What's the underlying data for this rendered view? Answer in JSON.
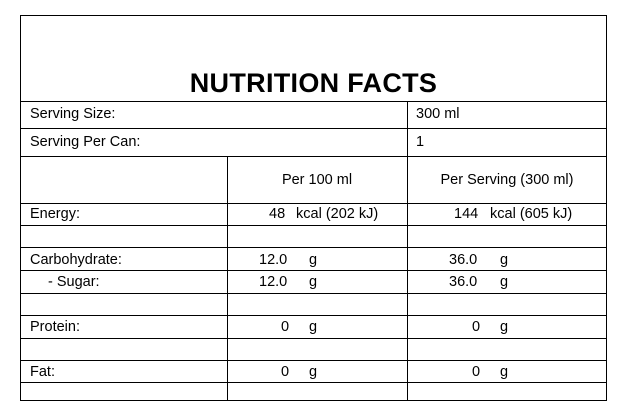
{
  "title": "NUTRITION FACTS",
  "serving_size": {
    "label": "Serving Size:",
    "value": "300 ml"
  },
  "serving_per_can": {
    "label": "Serving Per Can:",
    "value": "1"
  },
  "columns": {
    "per100": "Per 100 ml",
    "per_serving": "Per Serving (300 ml)"
  },
  "rows": {
    "energy": {
      "label": "Energy:",
      "per100_num": "48",
      "per100_unit": "kcal (202 kJ)",
      "serv_num": "144",
      "serv_unit": "kcal (605 kJ)"
    },
    "carbohydrate": {
      "label": "Carbohydrate:",
      "per100_num": "12.0",
      "per100_unit": "g",
      "serv_num": "36.0",
      "serv_unit": "g"
    },
    "sugar": {
      "label": "- Sugar:",
      "per100_num": "12.0",
      "per100_unit": "g",
      "serv_num": "36.0",
      "serv_unit": "g"
    },
    "protein": {
      "label": "Protein:",
      "per100_num": "0",
      "per100_unit": "g",
      "serv_num": "0",
      "serv_unit": "g"
    },
    "fat": {
      "label": "Fat:",
      "per100_num": "0",
      "per100_unit": "g",
      "serv_num": "0",
      "serv_unit": "g"
    }
  }
}
